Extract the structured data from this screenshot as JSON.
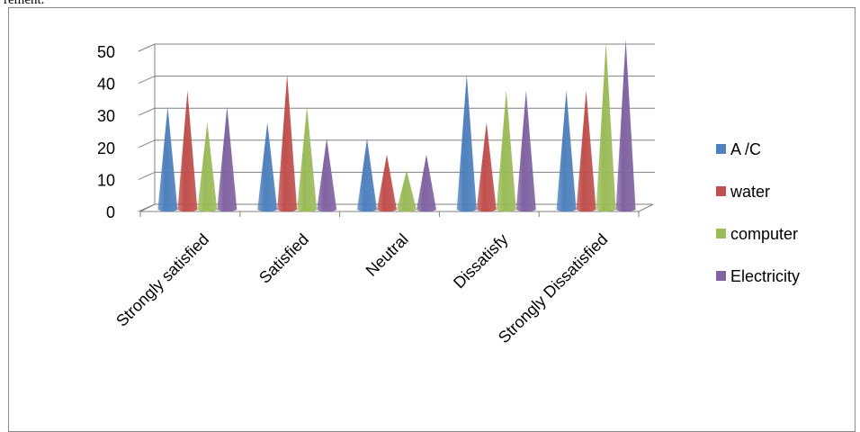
{
  "page_text": "rement.",
  "chart_data": {
    "type": "bar",
    "categories": [
      "Strongly satisfied",
      "Satisfied",
      "Neutral",
      "Dissatisfy",
      "Strongly Dissatisfied"
    ],
    "series": [
      {
        "name": "A /C",
        "color": "#4f81bd",
        "values": [
          30,
          25,
          20,
          40,
          35
        ]
      },
      {
        "name": "water",
        "color": "#c0504d",
        "values": [
          35,
          40,
          15,
          25,
          35
        ]
      },
      {
        "name": "computer",
        "color": "#9bbb59",
        "values": [
          25,
          30,
          10,
          35,
          50
        ]
      },
      {
        "name": "Electricity",
        "color": "#8064a2",
        "values": [
          30,
          20,
          15,
          35,
          51
        ]
      }
    ],
    "ylim": [
      0,
      50
    ],
    "yticks": [
      0,
      10,
      20,
      30,
      40,
      50
    ],
    "grid": true,
    "legend_position": "right",
    "bar_shape": "cone"
  }
}
